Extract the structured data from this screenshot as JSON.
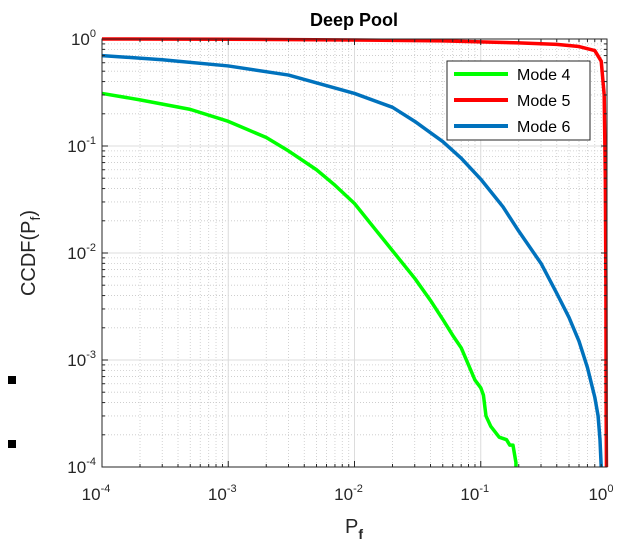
{
  "chart_data": {
    "type": "line",
    "title": "Deep Pool",
    "xlabel": {
      "main": "P",
      "sub": "f"
    },
    "ylabel": {
      "main": "CCDF(P",
      "sub": "f",
      "close": ")"
    },
    "xscale": "log",
    "yscale": "log",
    "xlim": [
      0.0001,
      1
    ],
    "ylim": [
      0.0001,
      1
    ],
    "grid": true,
    "minor_grid": true,
    "legend_position": "top-right",
    "xticks": [
      {
        "base": "10",
        "exp": "-4"
      },
      {
        "base": "10",
        "exp": "-3"
      },
      {
        "base": "10",
        "exp": "-2"
      },
      {
        "base": "10",
        "exp": "-1"
      },
      {
        "base": "10",
        "exp": "0"
      }
    ],
    "yticks": [
      {
        "base": "10",
        "exp": "0"
      },
      {
        "base": "10",
        "exp": "-1"
      },
      {
        "base": "10",
        "exp": "-2"
      },
      {
        "base": "10",
        "exp": "-3"
      },
      {
        "base": "10",
        "exp": "-4"
      }
    ],
    "series": [
      {
        "name": "Mode 4",
        "color": "#00ff00",
        "points": [
          [
            0.0001,
            0.31
          ],
          [
            0.0002,
            0.27
          ],
          [
            0.0005,
            0.22
          ],
          [
            0.001,
            0.17
          ],
          [
            0.002,
            0.12
          ],
          [
            0.003,
            0.09
          ],
          [
            0.005,
            0.06
          ],
          [
            0.007,
            0.043
          ],
          [
            0.01,
            0.029
          ],
          [
            0.015,
            0.016
          ],
          [
            0.02,
            0.0105
          ],
          [
            0.03,
            0.0058
          ],
          [
            0.04,
            0.0036
          ],
          [
            0.05,
            0.0024
          ],
          [
            0.06,
            0.0017
          ],
          [
            0.07,
            0.0013
          ],
          [
            0.08,
            0.0009
          ],
          [
            0.09,
            0.00065
          ],
          [
            0.1,
            0.00055
          ],
          [
            0.105,
            0.00047
          ],
          [
            0.11,
            0.0003
          ],
          [
            0.12,
            0.00024
          ],
          [
            0.14,
            0.00019
          ],
          [
            0.16,
            0.00018
          ],
          [
            0.17,
            0.00016
          ],
          [
            0.18,
            0.00016
          ],
          [
            0.19,
            0.00011
          ],
          [
            0.19,
            0.0001
          ]
        ]
      },
      {
        "name": "Mode 5",
        "color": "#ff0000",
        "points": [
          [
            0.0001,
            1.0
          ],
          [
            0.001,
            0.995
          ],
          [
            0.01,
            0.98
          ],
          [
            0.05,
            0.96
          ],
          [
            0.1,
            0.94
          ],
          [
            0.2,
            0.92
          ],
          [
            0.4,
            0.89
          ],
          [
            0.6,
            0.85
          ],
          [
            0.8,
            0.78
          ],
          [
            0.9,
            0.62
          ],
          [
            0.95,
            0.3
          ],
          [
            0.97,
            0.05
          ],
          [
            0.98,
            0.005
          ],
          [
            0.985,
            0.0003
          ],
          [
            0.99,
            0.0001
          ]
        ]
      },
      {
        "name": "Mode 6",
        "color": "#0072bd",
        "points": [
          [
            0.0001,
            0.7
          ],
          [
            0.0003,
            0.64
          ],
          [
            0.001,
            0.56
          ],
          [
            0.003,
            0.46
          ],
          [
            0.01,
            0.31
          ],
          [
            0.02,
            0.23
          ],
          [
            0.03,
            0.17
          ],
          [
            0.05,
            0.11
          ],
          [
            0.07,
            0.077
          ],
          [
            0.1,
            0.049
          ],
          [
            0.15,
            0.027
          ],
          [
            0.2,
            0.016
          ],
          [
            0.3,
            0.008
          ],
          [
            0.4,
            0.0042
          ],
          [
            0.5,
            0.0025
          ],
          [
            0.6,
            0.0015
          ],
          [
            0.7,
            0.00085
          ],
          [
            0.8,
            0.00045
          ],
          [
            0.85,
            0.0003
          ],
          [
            0.88,
            0.00018
          ],
          [
            0.9,
            0.0001
          ]
        ]
      }
    ]
  }
}
